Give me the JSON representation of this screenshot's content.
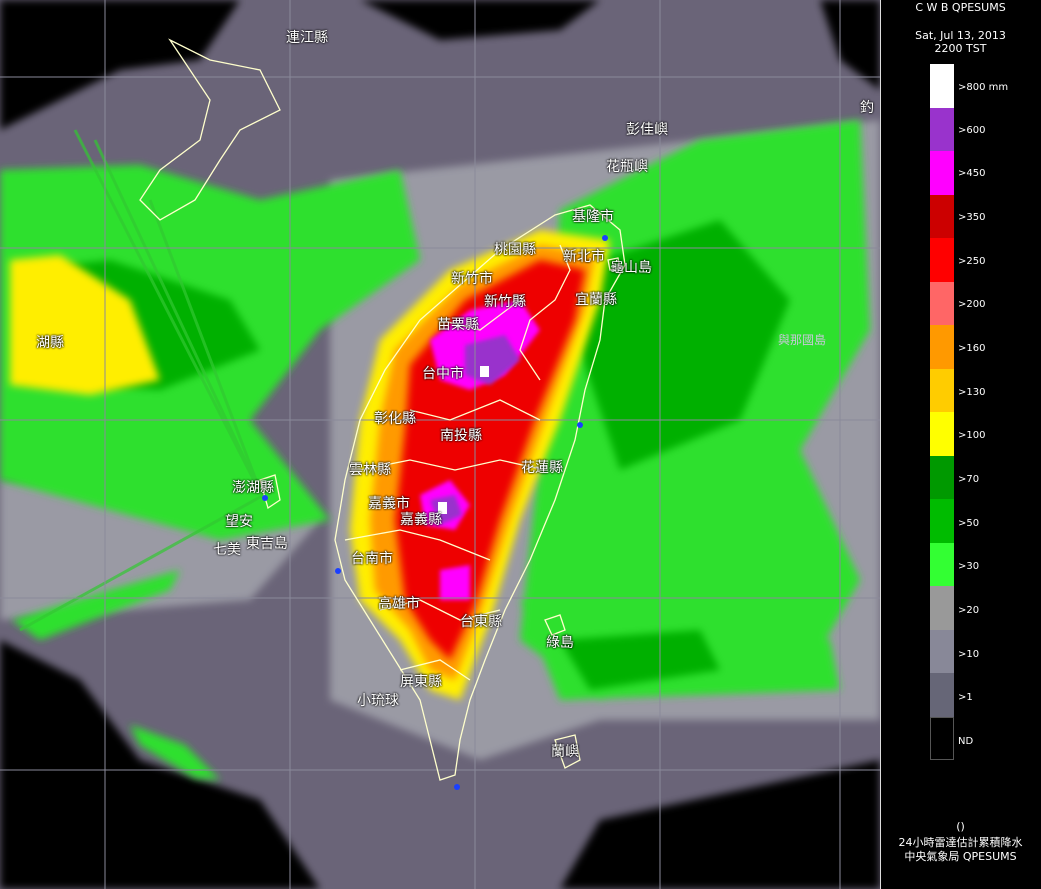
{
  "header": {
    "system": "C W B QPESUMS",
    "date": "Sat, Jul 13, 2013",
    "time": "2200 TST"
  },
  "legend": {
    "bins": [
      {
        "label": ">800 mm",
        "color": "#ffffff"
      },
      {
        "label": ">600",
        "color": "#9933cc"
      },
      {
        "label": ">450",
        "color": "#ff00ff"
      },
      {
        "label": ">350",
        "color": "#cc0000"
      },
      {
        "label": ">250",
        "color": "#ff0000"
      },
      {
        "label": ">200",
        "color": "#ff6666"
      },
      {
        "label": ">160",
        "color": "#ff9900"
      },
      {
        "label": ">130",
        "color": "#ffcc00"
      },
      {
        "label": ">100",
        "color": "#ffff00"
      },
      {
        "label": ">70",
        "color": "#009900"
      },
      {
        "label": ">50",
        "color": "#00bb00"
      },
      {
        "label": ">30",
        "color": "#33ff33"
      },
      {
        "label": ">20",
        "color": "#999999"
      },
      {
        "label": ">10",
        "color": "#888898"
      },
      {
        "label": ">1",
        "color": "#666677"
      },
      {
        "label": "ND",
        "color": "#000000"
      }
    ]
  },
  "footer": {
    "paren": "()",
    "title": "24小時雷達估計累積降水",
    "agency": "中央氣象局 QPESUMS"
  },
  "places": [
    {
      "name": "連江縣"
    },
    {
      "name": "釣"
    },
    {
      "name": "彭佳嶼"
    },
    {
      "name": "花瓶嶼"
    },
    {
      "name": "基隆市"
    },
    {
      "name": "桃園縣"
    },
    {
      "name": "新北市"
    },
    {
      "name": "龜山島"
    },
    {
      "name": "新竹市"
    },
    {
      "name": "新竹縣"
    },
    {
      "name": "宜蘭縣"
    },
    {
      "name": "苗栗縣"
    },
    {
      "name": "與那國島"
    },
    {
      "name": "湖縣"
    },
    {
      "name": "台中市"
    },
    {
      "name": "彰化縣"
    },
    {
      "name": "南投縣"
    },
    {
      "name": "花蓮縣"
    },
    {
      "name": "雲林縣"
    },
    {
      "name": "澎湖縣"
    },
    {
      "name": "嘉義市"
    },
    {
      "name": "嘉義縣"
    },
    {
      "name": "望安"
    },
    {
      "name": "七美"
    },
    {
      "name": "東吉島"
    },
    {
      "name": "台南市"
    },
    {
      "name": "高雄市"
    },
    {
      "name": "台東縣"
    },
    {
      "name": "綠島"
    },
    {
      "name": "屏東縣"
    },
    {
      "name": "小琉球"
    },
    {
      "name": "蘭嶼"
    }
  ]
}
